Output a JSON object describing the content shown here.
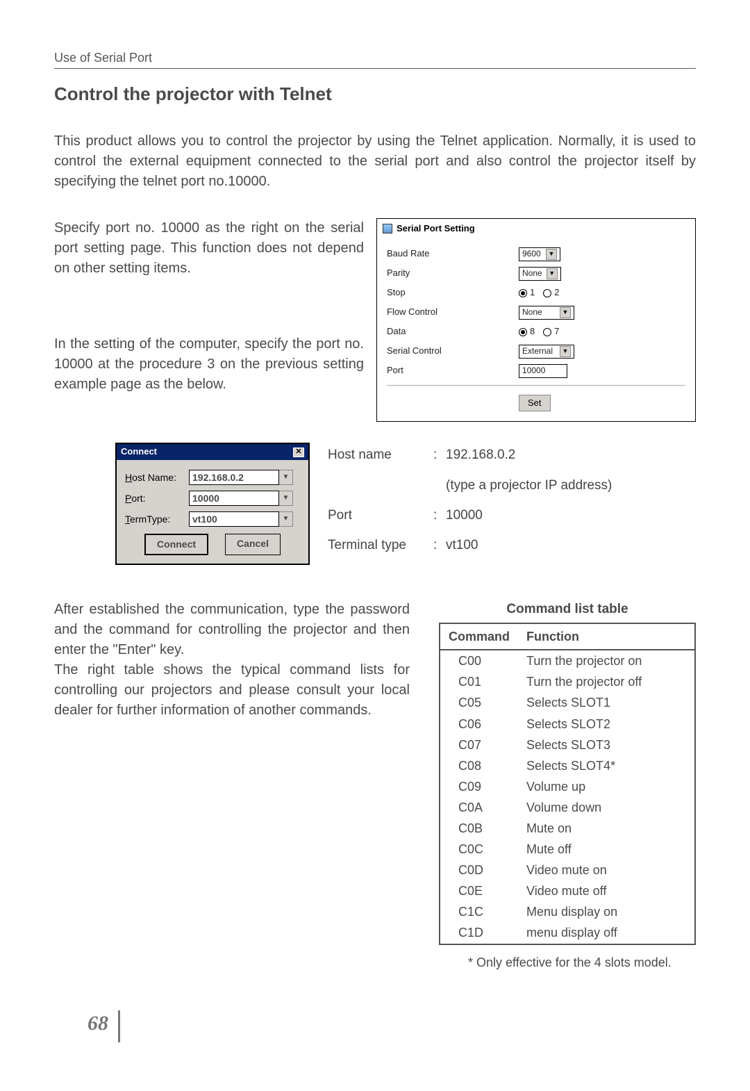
{
  "header": {
    "breadcrumb": "Use of Serial Port"
  },
  "title": "Control the projector with Telnet",
  "intro": "This product allows you to control the projector by using the Telnet application. Normally, it is used to control the external equipment connected to the serial port and also control the projector itself by specifying the telnet port no.10000.",
  "leftPara1": "Specify port no. 10000 as the right on the serial port setting page. This function does not depend on other setting items.",
  "leftPara2": "In the setting of the computer, specify the port no. 10000 at the procedure 3 on the previous setting example page as the below.",
  "serialPanel": {
    "title": "Serial Port Setting",
    "rows": {
      "baud": {
        "label": "Baud Rate",
        "value": "9600",
        "type": "select"
      },
      "parity": {
        "label": "Parity",
        "value": "None",
        "type": "select"
      },
      "stop": {
        "label": "Stop",
        "options": [
          "1",
          "2"
        ],
        "selectedIndex": 0,
        "type": "radio"
      },
      "flow": {
        "label": "Flow Control",
        "value": "None",
        "type": "select"
      },
      "data": {
        "label": "Data",
        "options": [
          "8",
          "7"
        ],
        "selectedIndex": 0,
        "type": "radio"
      },
      "serialctrl": {
        "label": "Serial Control",
        "value": "External",
        "type": "select"
      },
      "port": {
        "label": "Port",
        "value": "10000",
        "type": "text"
      }
    },
    "setLabel": "Set"
  },
  "connectDlg": {
    "title": "Connect",
    "hostLabel": "Host Name:",
    "hostValue": "192.168.0.2",
    "portLabel": "Port:",
    "portValue": "10000",
    "termLabel": "TermType:",
    "termValue": "vt100",
    "connectBtn": "Connect",
    "cancelBtn": "Cancel"
  },
  "connInfo": {
    "host": {
      "k": "Host name",
      "v": "192.168.0.2",
      "note": "(type a projector IP address)"
    },
    "port": {
      "k": "Port",
      "v": "10000"
    },
    "term": {
      "k": "Terminal type",
      "v": "vt100"
    }
  },
  "para3a": "After established the communication, type the password and the command for controlling the projector and then enter the \"Enter\" key.",
  "para3b": "The right table shows the typical command lists for controlling our projectors and please consult your local dealer for further information of another commands.",
  "cmdTable": {
    "title": "Command list table",
    "headers": [
      "Command",
      "Function"
    ],
    "rows": [
      [
        "C00",
        "Turn the projector on"
      ],
      [
        "C01",
        "Turn the projector off"
      ],
      [
        "C05",
        "Selects SLOT1"
      ],
      [
        "C06",
        "Selects SLOT2"
      ],
      [
        "C07",
        "Selects SLOT3"
      ],
      [
        "C08",
        "Selects SLOT4*"
      ],
      [
        "C09",
        "Volume up"
      ],
      [
        "C0A",
        "Volume down"
      ],
      [
        "C0B",
        "Mute on"
      ],
      [
        "C0C",
        "Mute off"
      ],
      [
        "C0D",
        "Video mute on"
      ],
      [
        "C0E",
        "Video mute off"
      ],
      [
        "C1C",
        "Menu display on"
      ],
      [
        "C1D",
        "menu display off"
      ]
    ]
  },
  "footnote": "* Only effective for the 4 slots model.",
  "pageNumber": "68",
  "colors": {
    "text": "#4a4a4a",
    "panelBorder": "#000000",
    "btnFace": "#d6d3ce",
    "dlgTitle": "#0a246a"
  }
}
